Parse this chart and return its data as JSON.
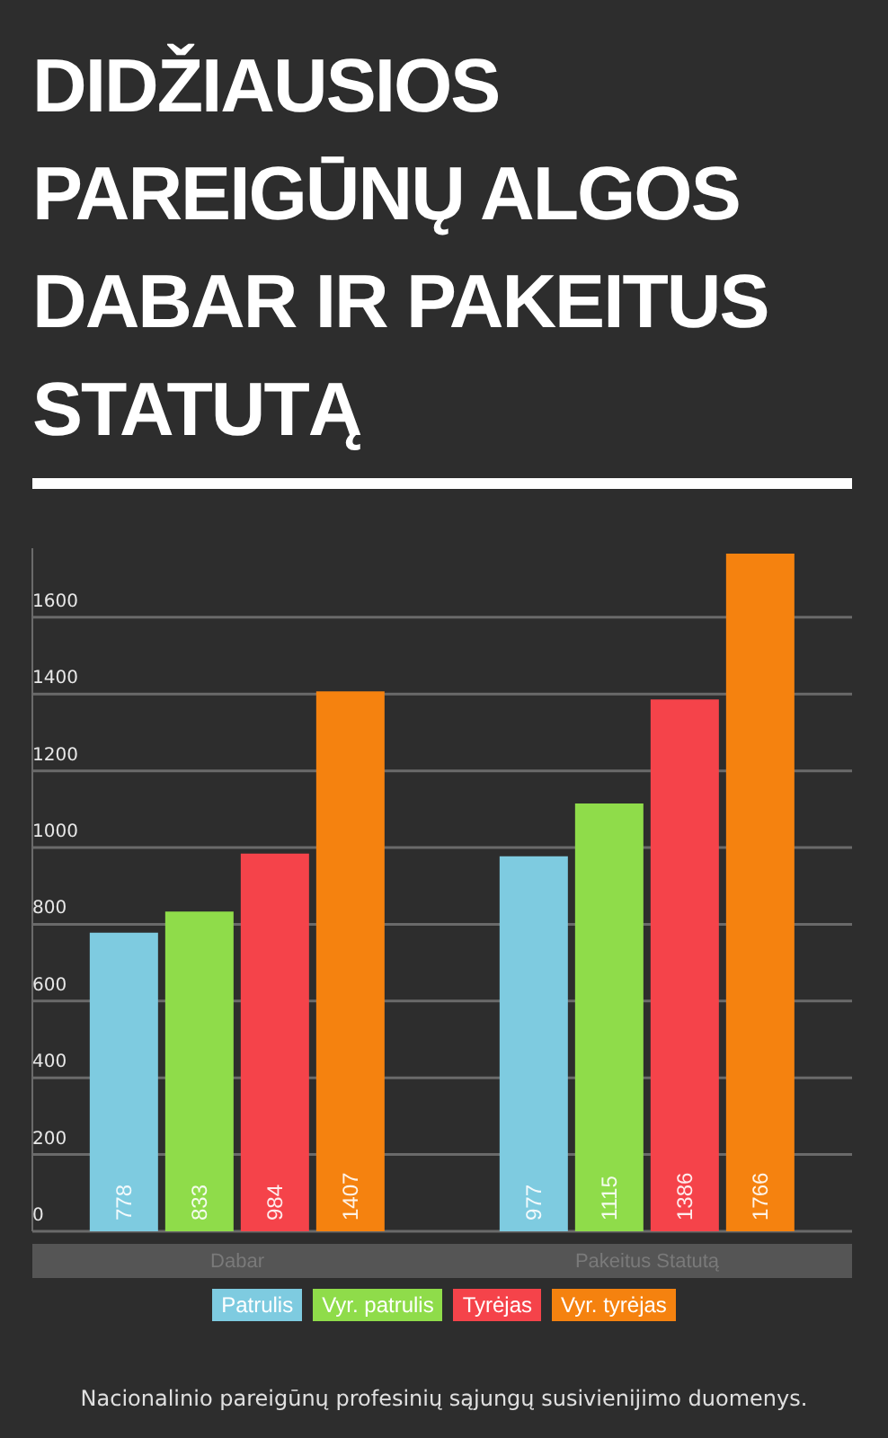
{
  "chart_data": {
    "type": "bar",
    "title": "DIDŽIAUSIOS PAREIGŪNŲ ALGOS DABAR IR PAKEITUS STATUTĄ",
    "categories": [
      "Dabar",
      "Pakeitus  Statutą"
    ],
    "series": [
      {
        "name": "Patrulis",
        "color": "#7ecbe0",
        "values": [
          778,
          977
        ]
      },
      {
        "name": "Vyr. patrulis",
        "color": "#8fdc4a",
        "values": [
          833,
          1115
        ]
      },
      {
        "name": "Tyrėjas",
        "color": "#f5434a",
        "values": [
          984,
          1386
        ]
      },
      {
        "name": "Vyr. tyrėjas",
        "color": "#f5820f",
        "values": [
          1407,
          1766
        ]
      }
    ],
    "ylim": [
      0,
      1780
    ],
    "yticks": [
      0,
      200,
      400,
      600,
      800,
      1000,
      1200,
      1400,
      1600
    ],
    "grid": "y",
    "legend": "bottom",
    "data_labels": true,
    "annotations": [
      "Nacionalinio pareigūnų profesinių sąjungų susivienijimo duomenys."
    ]
  }
}
